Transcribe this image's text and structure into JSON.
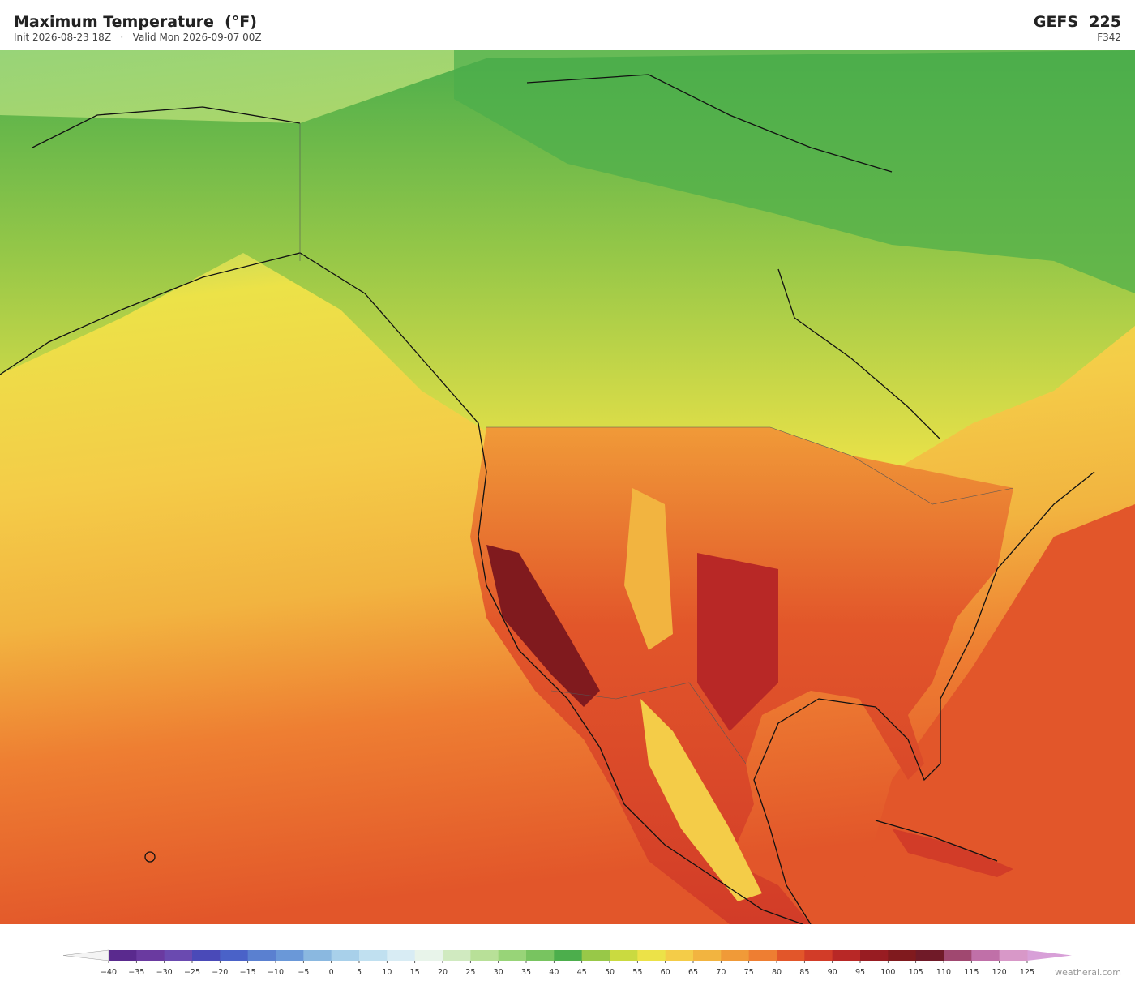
{
  "header": {
    "title": "Maximum Temperature  (°F)",
    "subtitle": "Init 2026-08-23 18Z   ·   Valid Mon 2026-09-07 00Z",
    "model": "GEFS  225",
    "forecast_hour": "F342"
  },
  "colorbar": {
    "ticks": [
      {
        "value": -40,
        "label": "−40"
      },
      {
        "value": -35,
        "label": "−35"
      },
      {
        "value": -30,
        "label": "−30"
      },
      {
        "value": -25,
        "label": "−25"
      },
      {
        "value": -20,
        "label": "−20"
      },
      {
        "value": -15,
        "label": "−15"
      },
      {
        "value": -10,
        "label": "−10"
      },
      {
        "value": -5,
        "label": "−5"
      },
      0,
      5,
      10,
      15,
      20,
      25,
      30,
      35,
      40,
      45,
      50,
      55,
      60,
      65,
      70,
      75,
      80,
      85,
      90,
      95,
      100,
      105,
      110,
      115,
      120,
      125
    ],
    "colors": [
      "#5a2a8e",
      "#6a3aa0",
      "#6a4ab0",
      "#4a4ab8",
      "#4a62c8",
      "#5a80d0",
      "#6a98d8",
      "#8ab8e0",
      "#a8d0ea",
      "#c0e0f0",
      "#d8ecf4",
      "#e8f4ea",
      "#d0eac0",
      "#b8e098",
      "#98d478",
      "#78c460",
      "#4cae4c",
      "#98c848",
      "#cada40",
      "#ece248",
      "#f4cc48",
      "#f2b440",
      "#f09a38",
      "#ee7e32",
      "#e2562a",
      "#d23c28",
      "#b82826",
      "#981c22",
      "#801a1e",
      "#701a28",
      "#a04870",
      "#c070a8",
      "#d898c8"
    ],
    "under_color": "#f4f4f4",
    "over_color": "#d8a0d8"
  },
  "footer": {
    "credit": "weatherai.com"
  }
}
